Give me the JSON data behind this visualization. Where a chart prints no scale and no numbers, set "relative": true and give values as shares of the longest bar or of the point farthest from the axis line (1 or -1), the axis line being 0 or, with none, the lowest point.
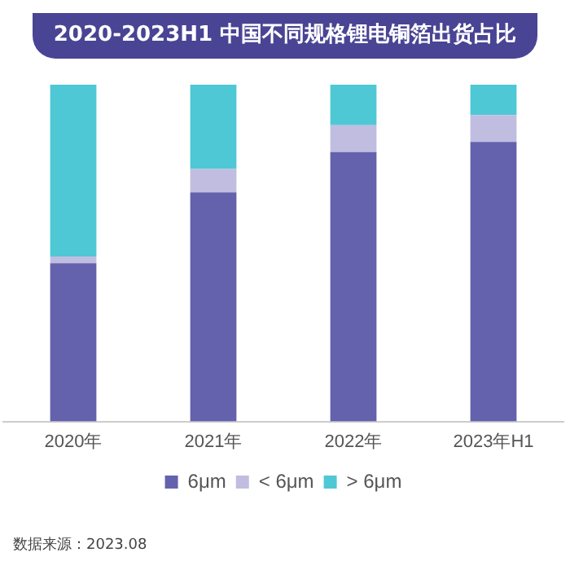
{
  "chart_data": {
    "type": "bar",
    "title": "2020-2023H1 中国不同规格锂电铜箔出货占比",
    "categories": [
      "2020年",
      "2021年",
      "2022年",
      "2023年H1"
    ],
    "stacked": true,
    "relative": true,
    "legend": "bottom",
    "grid": false,
    "series": [
      {
        "name": "6μm",
        "color": "#6462ad",
        "values": [
          0.47,
          0.68,
          0.8,
          0.83
        ]
      },
      {
        "name": "< 6μm",
        "color": "#c0bde0",
        "values": [
          0.02,
          0.07,
          0.08,
          0.08
        ]
      },
      {
        "name": "> 6μm",
        "color": "#4ec8d4",
        "values": [
          0.51,
          0.25,
          0.12,
          0.09
        ]
      }
    ],
    "annotations": [
      "数据来源：2023.08"
    ]
  }
}
